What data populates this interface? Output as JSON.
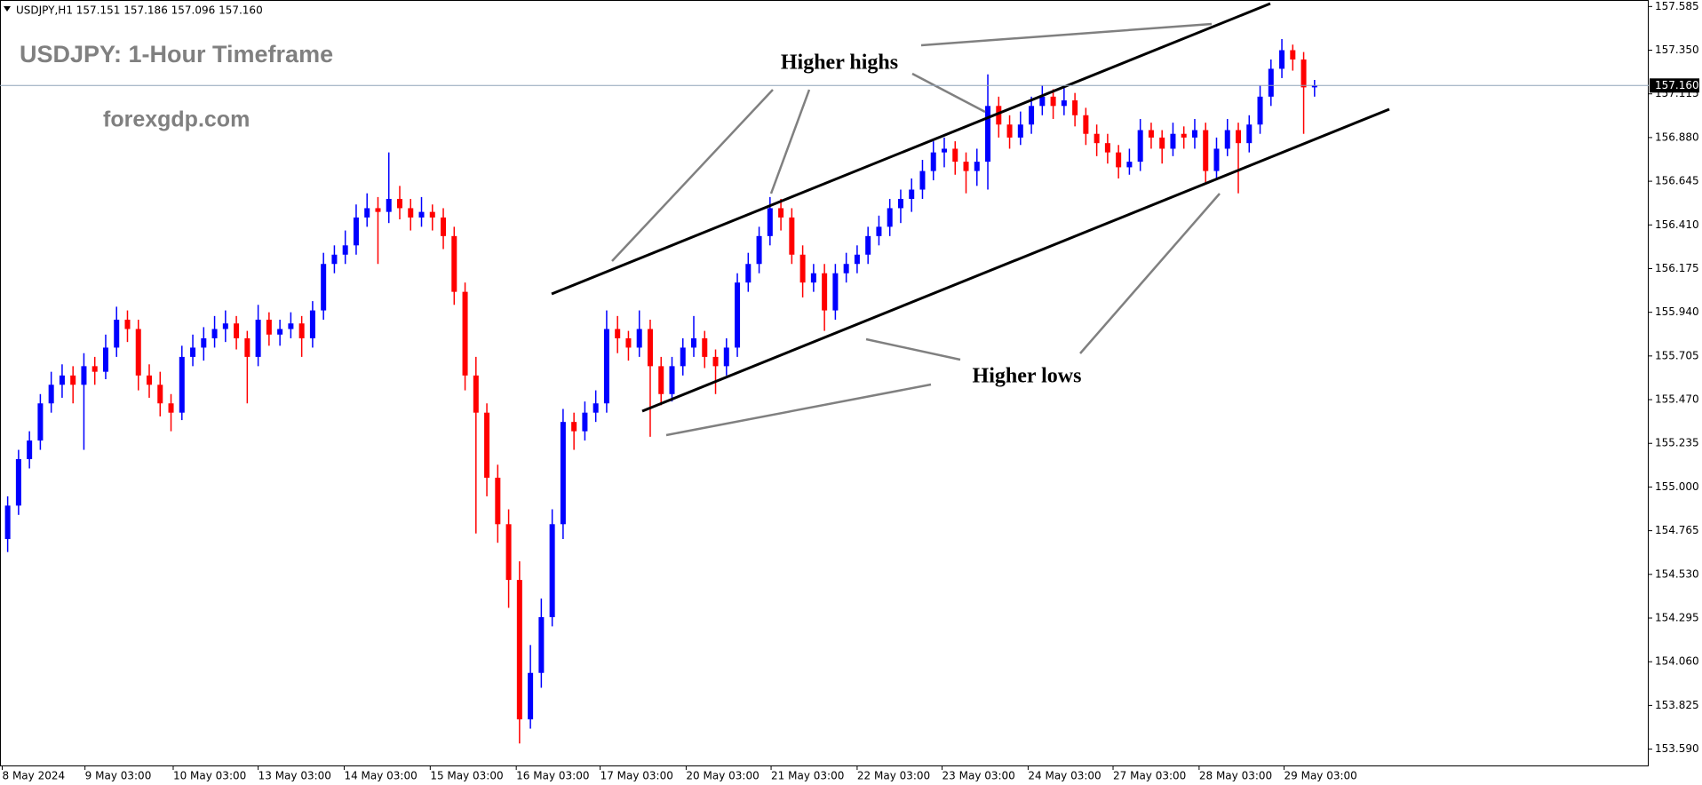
{
  "chart_data": {
    "type": "candlestick",
    "header": "USDJPY,H1  157.151 157.186 157.096 157.160",
    "title": "USDJPY: 1-Hour Timeframe",
    "watermark": "forexgdp.com",
    "annotations": [
      "Higher highs",
      "Higher lows"
    ],
    "up_color": "#0000ff",
    "down_color": "#ff0000",
    "ylim": [
      153.502,
      157.62
    ],
    "yticks": [
      157.585,
      {
        "value": 157.35,
        "label": "157.350"
      },
      157.115,
      {
        "value": 156.88,
        "label": "156.880"
      },
      156.645,
      {
        "value": 156.41,
        "label": "156.410"
      },
      156.175,
      {
        "value": 155.94,
        "label": "155.940"
      },
      155.705,
      {
        "value": 155.47,
        "label": "155.470"
      },
      155.235,
      {
        "value": 155,
        "label": "155.000"
      },
      154.765,
      {
        "value": 154.53,
        "label": "154.530"
      },
      154.295,
      {
        "value": 154.06,
        "label": "154.060"
      },
      153.825,
      {
        "value": 153.59,
        "label": "153.590"
      }
    ],
    "last_price": {
      "value": 157.16,
      "label": "157.160"
    },
    "xticks": [
      {
        "value": 0,
        "label": "8 May 2024"
      },
      {
        "value": 7.6,
        "label": "9 May 03:00"
      },
      {
        "value": 15.7,
        "label": "10 May 03:00"
      },
      {
        "value": 23.5,
        "label": "13 May 03:00"
      },
      {
        "value": 31.4,
        "label": "14 May 03:00"
      },
      {
        "value": 39.3,
        "label": "15 May 03:00"
      },
      {
        "value": 47.2,
        "label": "16 May 03:00"
      },
      {
        "value": 54.9,
        "label": "17 May 03:00"
      },
      {
        "value": 62.8,
        "label": "20 May 03:00"
      },
      {
        "value": 70.6,
        "label": "21 May 03:00"
      },
      {
        "value": 78.5,
        "label": "22 May 03:00"
      },
      {
        "value": 86.3,
        "label": "23 May 03:00"
      },
      {
        "value": 94.2,
        "label": "24 May 03:00"
      },
      {
        "value": 102,
        "label": "27 May 03:00"
      },
      {
        "value": 109.9,
        "label": "28 May 03:00"
      },
      {
        "value": 117.7,
        "label": "29 May 03:00"
      }
    ],
    "ohlc": [
      [
        154.72,
        154.95,
        154.65,
        154.9
      ],
      [
        154.9,
        155.2,
        154.85,
        155.15
      ],
      [
        155.15,
        155.3,
        155.1,
        155.25
      ],
      [
        155.25,
        155.5,
        155.2,
        155.45
      ],
      [
        155.45,
        155.62,
        155.4,
        155.55
      ],
      [
        155.55,
        155.66,
        155.48,
        155.6
      ],
      [
        155.6,
        155.65,
        155.45,
        155.55
      ],
      [
        155.55,
        155.72,
        155.2,
        155.65
      ],
      [
        155.65,
        155.7,
        155.55,
        155.62
      ],
      [
        155.62,
        155.82,
        155.58,
        155.75
      ],
      [
        155.75,
        155.97,
        155.7,
        155.9
      ],
      [
        155.9,
        155.95,
        155.78,
        155.85
      ],
      [
        155.85,
        155.9,
        155.52,
        155.6
      ],
      [
        155.6,
        155.66,
        155.48,
        155.55
      ],
      [
        155.55,
        155.62,
        155.38,
        155.45
      ],
      [
        155.45,
        155.5,
        155.3,
        155.4
      ],
      [
        155.4,
        155.76,
        155.36,
        155.7
      ],
      [
        155.7,
        155.82,
        155.65,
        155.75
      ],
      [
        155.75,
        155.86,
        155.68,
        155.8
      ],
      [
        155.8,
        155.92,
        155.75,
        155.85
      ],
      [
        155.85,
        155.95,
        155.78,
        155.88
      ],
      [
        155.88,
        155.92,
        155.74,
        155.8
      ],
      [
        155.8,
        155.84,
        155.45,
        155.7
      ],
      [
        155.7,
        155.98,
        155.65,
        155.9
      ],
      [
        155.9,
        155.94,
        155.76,
        155.82
      ],
      [
        155.82,
        155.9,
        155.76,
        155.85
      ],
      [
        155.85,
        155.94,
        155.8,
        155.88
      ],
      [
        155.88,
        155.92,
        155.7,
        155.8
      ],
      [
        155.8,
        156,
        155.75,
        155.95
      ],
      [
        155.95,
        156.26,
        155.9,
        156.2
      ],
      [
        156.2,
        156.3,
        156.15,
        156.25
      ],
      [
        156.25,
        156.38,
        156.2,
        156.3
      ],
      [
        156.3,
        156.52,
        156.25,
        156.45
      ],
      [
        156.45,
        156.58,
        156.4,
        156.5
      ],
      [
        156.5,
        156.56,
        156.2,
        156.48
      ],
      [
        156.48,
        156.8,
        156.42,
        156.55
      ],
      [
        156.55,
        156.62,
        156.44,
        156.5
      ],
      [
        156.5,
        156.55,
        156.38,
        156.45
      ],
      [
        156.45,
        156.56,
        156.4,
        156.48
      ],
      [
        156.48,
        156.52,
        156.38,
        156.45
      ],
      [
        156.45,
        156.5,
        156.28,
        156.35
      ],
      [
        156.35,
        156.4,
        155.98,
        156.05
      ],
      [
        156.05,
        156.1,
        155.52,
        155.6
      ],
      [
        155.6,
        155.7,
        154.75,
        155.4
      ],
      [
        155.4,
        155.45,
        154.95,
        155.05
      ],
      [
        155.05,
        155.12,
        154.7,
        154.8
      ],
      [
        154.8,
        154.88,
        154.35,
        154.5
      ],
      [
        154.5,
        154.6,
        153.62,
        153.75
      ],
      [
        153.75,
        154.15,
        153.7,
        154
      ],
      [
        154,
        154.4,
        153.92,
        154.3
      ],
      [
        154.3,
        154.88,
        154.25,
        154.8
      ],
      [
        154.8,
        155.42,
        154.72,
        155.35
      ],
      [
        155.35,
        155.4,
        155.2,
        155.3
      ],
      [
        155.3,
        155.46,
        155.25,
        155.4
      ],
      [
        155.4,
        155.52,
        155.35,
        155.45
      ],
      [
        155.45,
        155.95,
        155.4,
        155.85
      ],
      [
        155.85,
        155.92,
        155.72,
        155.8
      ],
      [
        155.8,
        155.84,
        155.68,
        155.75
      ],
      [
        155.75,
        155.95,
        155.7,
        155.85
      ],
      [
        155.85,
        155.9,
        155.27,
        155.65
      ],
      [
        155.65,
        155.7,
        155.44,
        155.5
      ],
      [
        155.5,
        155.7,
        155.46,
        155.65
      ],
      [
        155.65,
        155.8,
        155.6,
        155.75
      ],
      [
        155.75,
        155.92,
        155.7,
        155.8
      ],
      [
        155.8,
        155.84,
        155.64,
        155.7
      ],
      [
        155.7,
        155.74,
        155.5,
        155.65
      ],
      [
        155.65,
        155.8,
        155.6,
        155.75
      ],
      [
        155.75,
        156.15,
        155.7,
        156.1
      ],
      [
        156.1,
        156.26,
        156.05,
        156.2
      ],
      [
        156.2,
        156.4,
        156.15,
        156.35
      ],
      [
        156.35,
        156.56,
        156.3,
        156.5
      ],
      [
        156.5,
        156.55,
        156.38,
        156.45
      ],
      [
        156.45,
        156.5,
        156.2,
        156.25
      ],
      [
        156.25,
        156.3,
        156.02,
        156.1
      ],
      [
        156.1,
        156.2,
        156.05,
        156.15
      ],
      [
        156.15,
        156.2,
        155.84,
        155.95
      ],
      [
        155.95,
        156.2,
        155.9,
        156.15
      ],
      [
        156.15,
        156.26,
        156.1,
        156.2
      ],
      [
        156.2,
        156.3,
        156.15,
        156.25
      ],
      [
        156.25,
        156.4,
        156.2,
        156.35
      ],
      [
        156.35,
        156.46,
        156.3,
        156.4
      ],
      [
        156.4,
        156.55,
        156.35,
        156.5
      ],
      [
        156.5,
        156.6,
        156.42,
        156.55
      ],
      [
        156.55,
        156.66,
        156.48,
        156.6
      ],
      [
        156.6,
        156.76,
        156.55,
        156.7
      ],
      [
        156.7,
        156.86,
        156.65,
        156.8
      ],
      [
        156.8,
        156.88,
        156.72,
        156.82
      ],
      [
        156.82,
        156.86,
        156.68,
        156.75
      ],
      [
        156.75,
        156.8,
        156.58,
        156.7
      ],
      [
        156.7,
        156.82,
        156.62,
        156.75
      ],
      [
        156.75,
        157.22,
        156.6,
        157.05
      ],
      [
        157.05,
        157.1,
        156.88,
        156.95
      ],
      [
        156.95,
        157,
        156.82,
        156.88
      ],
      [
        156.88,
        157.02,
        156.84,
        156.95
      ],
      [
        156.95,
        157.1,
        156.9,
        157.05
      ],
      [
        157.05,
        157.16,
        157,
        157.1
      ],
      [
        157.1,
        157.14,
        156.98,
        157.05
      ],
      [
        157.05,
        157.15,
        157,
        157.08
      ],
      [
        157.08,
        157.12,
        156.94,
        157
      ],
      [
        157,
        157.04,
        156.84,
        156.9
      ],
      [
        156.9,
        156.95,
        156.78,
        156.85
      ],
      [
        156.85,
        156.9,
        156.74,
        156.8
      ],
      [
        156.8,
        156.84,
        156.66,
        156.72
      ],
      [
        156.72,
        156.82,
        156.68,
        156.75
      ],
      [
        156.75,
        156.98,
        156.7,
        156.92
      ],
      [
        156.92,
        156.96,
        156.82,
        156.88
      ],
      [
        156.88,
        156.92,
        156.74,
        156.82
      ],
      [
        156.82,
        156.96,
        156.78,
        156.9
      ],
      [
        156.9,
        156.94,
        156.82,
        156.88
      ],
      [
        156.88,
        156.98,
        156.82,
        156.92
      ],
      [
        156.92,
        156.96,
        156.64,
        156.7
      ],
      [
        156.7,
        156.88,
        156.66,
        156.82
      ],
      [
        156.82,
        156.98,
        156.78,
        156.92
      ],
      [
        156.92,
        156.96,
        156.58,
        156.85
      ],
      [
        156.85,
        157,
        156.8,
        156.95
      ],
      [
        156.95,
        157.16,
        156.9,
        157.1
      ],
      [
        157.1,
        157.3,
        157.05,
        157.25
      ],
      [
        157.25,
        157.41,
        157.2,
        157.35
      ],
      [
        157.35,
        157.38,
        157.24,
        157.3
      ],
      [
        157.3,
        157.34,
        156.9,
        157.15
      ],
      [
        157.15,
        157.19,
        157.1,
        157.16
      ]
    ]
  }
}
